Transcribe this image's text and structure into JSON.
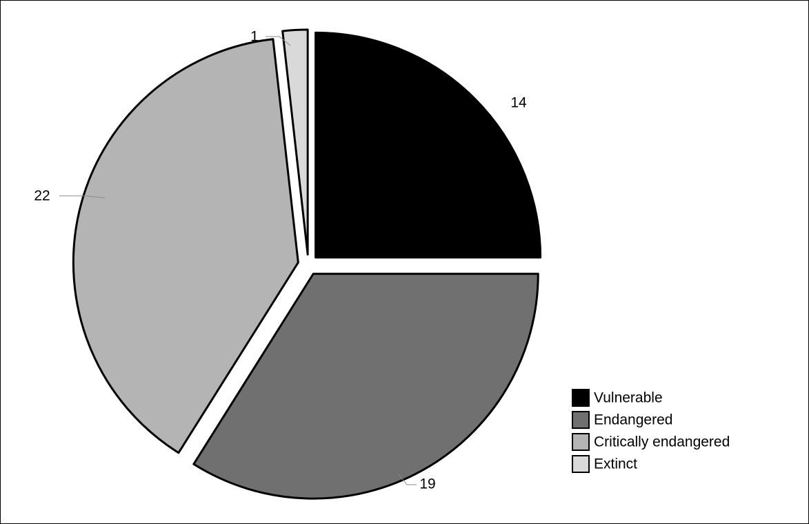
{
  "chart_data": {
    "type": "pie",
    "categories": [
      "Vulnerable",
      "Endangered",
      "Critically endangered",
      "Extinct"
    ],
    "values": [
      14,
      19,
      22,
      1
    ],
    "slices": [
      {
        "label": "Vulnerable",
        "value": 14,
        "color": "#000000"
      },
      {
        "label": "Endangered",
        "value": 19,
        "color": "#707070"
      },
      {
        "label": "Critically endangered",
        "value": 22,
        "color": "#b4b4b4"
      },
      {
        "label": "Extinct",
        "value": 1,
        "color": "#d9d9d9"
      }
    ],
    "exploded": true,
    "legend_position": "bottom-right",
    "title": "",
    "xlabel": "",
    "ylabel": ""
  },
  "legend": {
    "items": [
      {
        "label": "Vulnerable",
        "color": "#000000"
      },
      {
        "label": "Endangered",
        "color": "#707070"
      },
      {
        "label": "Critically endangered",
        "color": "#b4b4b4"
      },
      {
        "label": "Extinct",
        "color": "#d9d9d9"
      }
    ]
  },
  "frame": {
    "border_color": "#000000",
    "background": "#ffffff"
  }
}
